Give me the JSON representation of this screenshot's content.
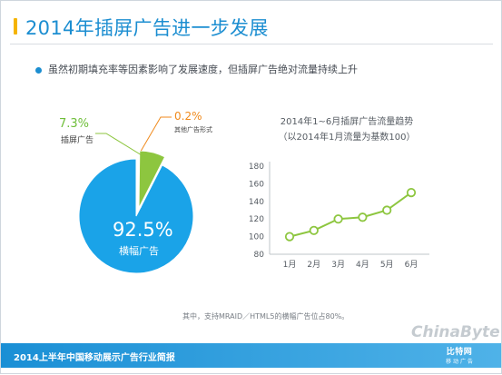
{
  "header": {
    "title": "2014年插屏广告进一步发展",
    "accent_color": "#f5b400",
    "title_color": "#1c8ed1"
  },
  "bullet": {
    "text": "虽然初期填充率等因素影响了发展速度，但插屏广告绝对流量持续上升"
  },
  "chart_data": [
    {
      "type": "pie",
      "slices": [
        {
          "label": "横幅广告",
          "pct_label": "92.5%",
          "value": 92.5,
          "color": "#1aa3e8"
        },
        {
          "label": "插屏广告",
          "pct_label": "7.3%",
          "value": 7.3,
          "color": "#8dc63f"
        },
        {
          "label": "其他广告形式",
          "pct_label": "0.2%",
          "value": 0.2,
          "color": "#f08a1c"
        }
      ]
    },
    {
      "type": "line",
      "title": "2014年1~6月插屏广告流量趋势",
      "subtitle": "（以2014年1月流量为基数100）",
      "categories": [
        "1月",
        "2月",
        "3月",
        "4月",
        "5月",
        "6月"
      ],
      "series": [
        {
          "values": [
            100,
            107,
            120,
            122,
            130,
            150
          ],
          "color": "#8dc63f"
        }
      ],
      "yticks": [
        80,
        100,
        120,
        140,
        160,
        180
      ],
      "ylim": [
        80,
        180
      ],
      "grid": false
    }
  ],
  "footnote": "其中，支持MRAID／HTML5的横幅广告位占80%。",
  "footer": {
    "text": "2014上半年中国移动展示广告行业简报",
    "color": "#1a8fd5"
  },
  "watermark": "ChinaByte",
  "logo": {
    "line1": "比特网",
    "line2": "移 动 广 告"
  }
}
